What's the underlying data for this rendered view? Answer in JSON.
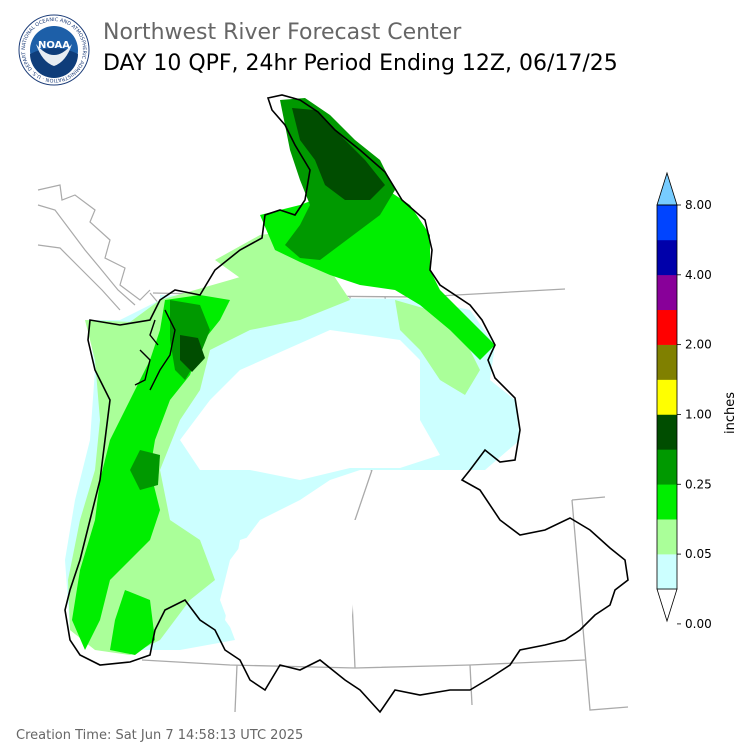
{
  "header": {
    "title": "Northwest River Forecast Center",
    "subtitle": "DAY 10 QPF, 24hr Period Ending 12Z, 06/17/25"
  },
  "logo": {
    "center_text": "NOAA",
    "ring_text": "NATIONAL OCEANIC AND ATMOSPHERIC ADMINISTRATION · U.S. DEPARTMENT OF COMMERCE"
  },
  "legend": {
    "label": "inches",
    "ticks": [
      "8.00",
      "4.00",
      "2.00",
      "1.00",
      "0.25",
      "0.05",
      "0.00"
    ],
    "colors": [
      "#ffffff",
      "#ccffff",
      "#aaff99",
      "#00ee00",
      "#009900",
      "#004d00",
      "#ffff00",
      "#808000",
      "#ff0000",
      "#880099",
      "#0000aa",
      "#0044ff",
      "#77ccff"
    ]
  },
  "footer": {
    "creation_time": "Creation Time: Sat Jun 7 14:58:13 UTC 2025"
  }
}
